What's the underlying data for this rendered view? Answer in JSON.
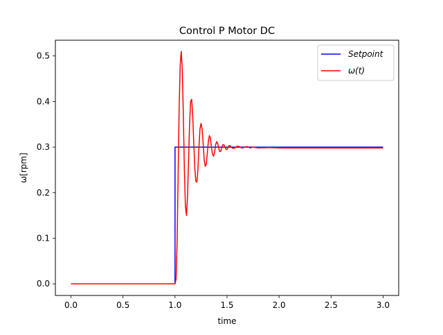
{
  "chart_data": {
    "type": "line",
    "title": "Control P Motor DC",
    "xlabel": "time",
    "ylabel": "ω[rpm]",
    "xlim": [
      -0.15,
      3.15
    ],
    "ylim": [
      -0.0255,
      0.5345
    ],
    "xticks": [
      0.0,
      0.5,
      1.0,
      1.5,
      2.0,
      2.5,
      3.0
    ],
    "xtick_labels": [
      "0.0",
      "0.5",
      "1.0",
      "1.5",
      "2.0",
      "2.5",
      "3.0"
    ],
    "yticks": [
      0.0,
      0.1,
      0.2,
      0.3,
      0.4,
      0.5
    ],
    "ytick_labels": [
      "0.0",
      "0.1",
      "0.2",
      "0.3",
      "0.4",
      "0.5"
    ],
    "grid": false,
    "legend_position": "top-right",
    "series": [
      {
        "name": "Setpoint",
        "color": "#0000ff",
        "points": [
          [
            0.0,
            0.0
          ],
          [
            1.0,
            0.0
          ],
          [
            1.0,
            0.3
          ],
          [
            3.0,
            0.3
          ]
        ]
      },
      {
        "name": "ω(t)",
        "color": "#ff0000",
        "points": [
          [
            0.0,
            0.0
          ],
          [
            1.0,
            0.0
          ],
          [
            1.01,
            0.01
          ],
          [
            1.02,
            0.09
          ],
          [
            1.03,
            0.24
          ],
          [
            1.04,
            0.39
          ],
          [
            1.05,
            0.48
          ],
          [
            1.06,
            0.51
          ],
          [
            1.07,
            0.47
          ],
          [
            1.08,
            0.37
          ],
          [
            1.09,
            0.25
          ],
          [
            1.1,
            0.17
          ],
          [
            1.11,
            0.15
          ],
          [
            1.12,
            0.19
          ],
          [
            1.13,
            0.27
          ],
          [
            1.14,
            0.35
          ],
          [
            1.15,
            0.4
          ],
          [
            1.16,
            0.405
          ],
          [
            1.17,
            0.37
          ],
          [
            1.18,
            0.31
          ],
          [
            1.19,
            0.255
          ],
          [
            1.2,
            0.225
          ],
          [
            1.21,
            0.223
          ],
          [
            1.22,
            0.25
          ],
          [
            1.23,
            0.3
          ],
          [
            1.24,
            0.34
          ],
          [
            1.25,
            0.352
          ],
          [
            1.26,
            0.34
          ],
          [
            1.27,
            0.31
          ],
          [
            1.28,
            0.273
          ],
          [
            1.29,
            0.258
          ],
          [
            1.3,
            0.262
          ],
          [
            1.31,
            0.285
          ],
          [
            1.32,
            0.312
          ],
          [
            1.33,
            0.325
          ],
          [
            1.34,
            0.32
          ],
          [
            1.35,
            0.3
          ],
          [
            1.36,
            0.285
          ],
          [
            1.37,
            0.28
          ],
          [
            1.38,
            0.288
          ],
          [
            1.39,
            0.305
          ],
          [
            1.4,
            0.312
          ],
          [
            1.41,
            0.308
          ],
          [
            1.42,
            0.298
          ],
          [
            1.43,
            0.29
          ],
          [
            1.44,
            0.291
          ],
          [
            1.45,
            0.3
          ],
          [
            1.46,
            0.305
          ],
          [
            1.47,
            0.305
          ],
          [
            1.48,
            0.3
          ],
          [
            1.49,
            0.295
          ],
          [
            1.5,
            0.295
          ],
          [
            1.51,
            0.3
          ],
          [
            1.52,
            0.303
          ],
          [
            1.53,
            0.303
          ],
          [
            1.54,
            0.3
          ],
          [
            1.56,
            0.297
          ],
          [
            1.58,
            0.299
          ],
          [
            1.6,
            0.302
          ],
          [
            1.62,
            0.301
          ],
          [
            1.64,
            0.298
          ],
          [
            1.66,
            0.299
          ],
          [
            1.68,
            0.301
          ],
          [
            1.7,
            0.301
          ],
          [
            1.72,
            0.298
          ],
          [
            1.75,
            0.3
          ],
          [
            1.8,
            0.298
          ],
          [
            1.9,
            0.299
          ],
          [
            2.0,
            0.298
          ],
          [
            2.5,
            0.298
          ],
          [
            3.0,
            0.298
          ]
        ]
      }
    ]
  }
}
